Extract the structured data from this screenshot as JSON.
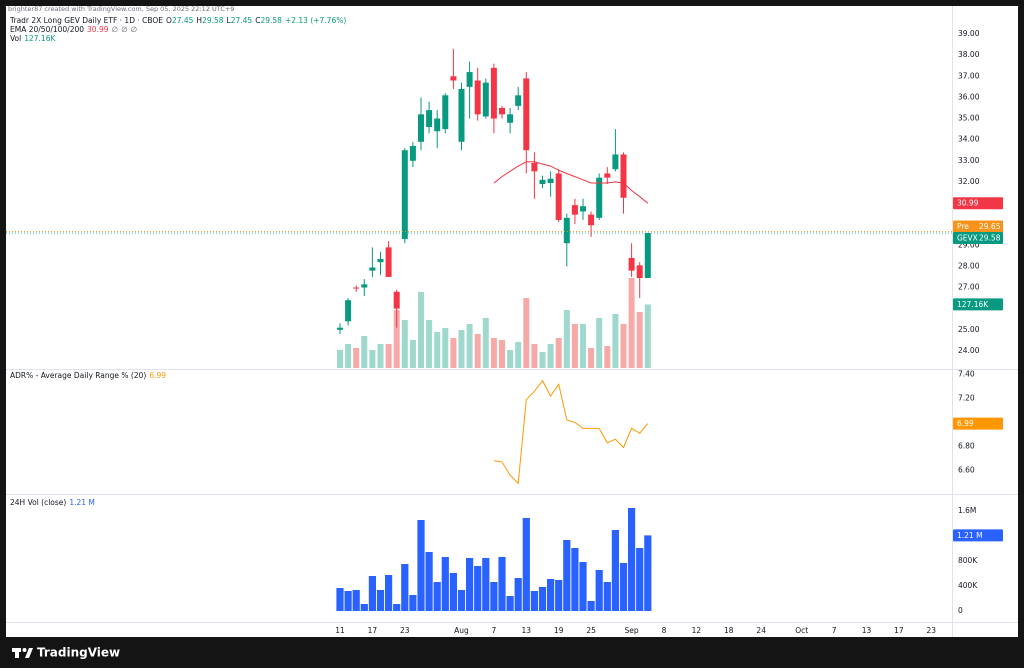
{
  "header": {
    "watermark": "brighter87 created with TradingView.com, Sep 05, 2025 22:12 UTC+9"
  },
  "footer": {
    "brand": "TradingView"
  },
  "chart_data": [
    {
      "type": "candlestick",
      "title": "Tradr 2X Long GEV Daily ETF · 1D · CBOE",
      "symbol": "GEVX",
      "x": [
        "2025-07-11",
        "2025-07-14",
        "2025-07-15",
        "2025-07-16",
        "2025-07-17",
        "2025-07-18",
        "2025-07-21",
        "2025-07-22",
        "2025-07-23",
        "2025-07-24",
        "2025-07-25",
        "2025-07-28",
        "2025-07-29",
        "2025-07-30",
        "2025-07-31",
        "2025-08-01",
        "2025-08-04",
        "2025-08-05",
        "2025-08-06",
        "2025-08-07",
        "2025-08-08",
        "2025-08-11",
        "2025-08-12",
        "2025-08-13",
        "2025-08-14",
        "2025-08-15",
        "2025-08-18",
        "2025-08-19",
        "2025-08-20",
        "2025-08-21",
        "2025-08-22",
        "2025-08-25",
        "2025-08-26",
        "2025-08-27",
        "2025-08-28",
        "2025-08-29",
        "2025-09-02",
        "2025-09-03",
        "2025-09-04"
      ],
      "open": [
        25.0,
        25.4,
        27.0,
        27.0,
        27.8,
        28.2,
        28.9,
        26.8,
        29.3,
        33.0,
        33.9,
        34.6,
        34.4,
        34.5,
        37.0,
        33.9,
        36.5,
        36.8,
        35.1,
        37.4,
        35.5,
        34.8,
        35.6,
        36.9,
        32.9,
        31.9,
        31.95,
        32.4,
        29.1,
        30.9,
        30.6,
        30.45,
        30.3,
        32.4,
        32.6,
        33.3,
        28.4,
        28.05,
        27.45
      ],
      "high": [
        25.3,
        26.5,
        27.1,
        27.4,
        28.9,
        28.7,
        29.2,
        26.9,
        33.6,
        33.9,
        36.0,
        35.8,
        35.4,
        36.2,
        38.3,
        36.7,
        37.7,
        37.4,
        36.9,
        37.6,
        35.6,
        35.5,
        36.5,
        37.2,
        33.4,
        32.3,
        32.5,
        32.6,
        30.5,
        31.2,
        31.2,
        30.6,
        32.4,
        32.7,
        34.5,
        33.4,
        29.1,
        28.2,
        29.58
      ],
      "low": [
        24.8,
        25.2,
        26.8,
        26.6,
        27.5,
        27.6,
        27.5,
        25.1,
        29.1,
        32.7,
        33.5,
        34.3,
        33.6,
        34.3,
        36.4,
        33.5,
        35.0,
        34.9,
        35.0,
        34.3,
        35.0,
        34.3,
        35.4,
        32.4,
        31.2,
        31.7,
        31.3,
        30.1,
        28.0,
        30.0,
        30.2,
        29.4,
        30.2,
        31.9,
        32.5,
        30.5,
        27.5,
        26.5,
        27.45
      ],
      "close": [
        25.1,
        26.4,
        26.95,
        27.15,
        27.95,
        28.35,
        27.5,
        26.0,
        33.5,
        33.7,
        35.2,
        35.4,
        35.0,
        36.1,
        36.8,
        36.4,
        37.2,
        35.2,
        36.7,
        35.0,
        35.2,
        35.2,
        36.1,
        33.5,
        32.5,
        32.1,
        32.15,
        30.2,
        30.3,
        30.45,
        30.85,
        29.95,
        32.2,
        32.2,
        33.3,
        31.25,
        27.8,
        27.45,
        29.58
      ],
      "up_color": "#089981",
      "down_color": "#f23645",
      "ohlc_keys": [
        "O",
        "H",
        "L",
        "C"
      ],
      "change": "+2.13 (+7.76%)",
      "ylim": [
        23.19,
        39.76
      ],
      "yticks": [
        {
          "value": 24,
          "label": "24.00"
        },
        {
          "value": 25,
          "label": "25.00"
        },
        {
          "value": 27,
          "label": "27.00"
        },
        {
          "value": 28,
          "label": "28.00"
        },
        {
          "value": 29,
          "label": "29.00"
        },
        {
          "value": 32,
          "label": "32.00"
        },
        {
          "value": 33,
          "label": "33.00"
        },
        {
          "value": 34,
          "label": "34.00"
        },
        {
          "value": 35,
          "label": "35.00"
        },
        {
          "value": 36,
          "label": "36.00"
        },
        {
          "value": 37,
          "label": "37.00"
        },
        {
          "value": 38,
          "label": "38.00"
        },
        {
          "value": 39,
          "label": "39.00"
        }
      ],
      "xticks": [
        {
          "value": "2025-07-11",
          "label": "11"
        },
        {
          "value": "2025-07-17",
          "label": "17"
        },
        {
          "value": "2025-07-23",
          "label": "23"
        },
        {
          "value": "2025-08-01",
          "label": "Aug"
        },
        {
          "value": "2025-08-07",
          "label": "7"
        },
        {
          "value": "2025-08-13",
          "label": "13"
        },
        {
          "value": "2025-08-19",
          "label": "19"
        },
        {
          "value": "2025-08-25",
          "label": "25"
        },
        {
          "value": "2025-09-02",
          "label": "Sep"
        },
        {
          "value": "2025-09-08",
          "label": "8"
        },
        {
          "value": "2025-09-12",
          "label": "12"
        },
        {
          "value": "2025-09-18",
          "label": "18"
        },
        {
          "value": "2025-09-24",
          "label": "24"
        },
        {
          "value": "2025-10-01",
          "label": "Oct"
        },
        {
          "value": "2025-10-07",
          "label": "7"
        },
        {
          "value": "2025-10-13",
          "label": "13"
        },
        {
          "value": "2025-10-17",
          "label": "17"
        },
        {
          "value": "2025-10-23",
          "label": "23"
        }
      ],
      "premarket": {
        "label": "Pre",
        "value": 29.65,
        "color": "#f7931a"
      },
      "series": [
        {
          "name": "EMA 20/50/100/200",
          "color": "#f23645",
          "na": [
            "∅",
            "∅",
            "∅"
          ],
          "values": [
            null,
            null,
            null,
            null,
            null,
            null,
            null,
            null,
            null,
            null,
            null,
            null,
            null,
            null,
            null,
            null,
            null,
            null,
            null,
            31.95,
            32.25,
            32.5,
            32.75,
            32.95,
            32.95,
            32.85,
            32.75,
            32.55,
            32.4,
            32.25,
            32.1,
            31.95,
            31.95,
            31.95,
            32.0,
            31.95,
            31.6,
            31.3,
            30.99
          ]
        },
        {
          "name": "Vol",
          "up_color": "#9fd9ce",
          "down_color": "#f7a9a8",
          "label_color": "#089981",
          "values": [
            36000,
            48000,
            40000,
            64000,
            36000,
            48000,
            48000,
            116000,
            96000,
            56000,
            152000,
            96000,
            72000,
            80000,
            60000,
            76000,
            88000,
            68000,
            100000,
            60000,
            56000,
            36000,
            52000,
            140000,
            48000,
            32000,
            48000,
            60000,
            116000,
            88000,
            88000,
            40000,
            100000,
            44000,
            108000,
            88000,
            180000,
            112000,
            127160
          ],
          "value_labels": {
            "38": "127.16K"
          }
        }
      ]
    },
    {
      "type": "line",
      "name": "ADR% - Average Daily Range % (20)",
      "color": "#ff9800",
      "values": [
        null,
        null,
        null,
        null,
        null,
        null,
        null,
        null,
        null,
        null,
        null,
        null,
        null,
        null,
        null,
        null,
        null,
        null,
        null,
        6.68,
        6.67,
        6.56,
        6.49,
        7.19,
        7.26,
        7.35,
        7.22,
        7.32,
        7.02,
        7.0,
        6.95,
        6.95,
        6.95,
        6.83,
        6.86,
        6.79,
        6.95,
        6.91,
        6.99
      ],
      "ylim": [
        6.41,
        7.43
      ],
      "yticks": [
        {
          "value": 6.6,
          "label": "6.60"
        },
        {
          "value": 6.8,
          "label": "6.80"
        },
        {
          "value": 7.2,
          "label": "7.20"
        },
        {
          "value": 7.4,
          "label": "7.40"
        }
      ]
    },
    {
      "type": "bar",
      "name": "24H Vol (close)",
      "color": "#2962ff",
      "values": [
        368000,
        320000,
        336000,
        112000,
        560000,
        336000,
        576000,
        112000,
        752000,
        256000,
        1456000,
        944000,
        464000,
        864000,
        608000,
        336000,
        848000,
        720000,
        848000,
        464000,
        864000,
        240000,
        528000,
        1488000,
        320000,
        384000,
        512000,
        496000,
        1136000,
        1008000,
        784000,
        160000,
        656000,
        464000,
        1296000,
        768000,
        1648000,
        1008000,
        1210000
      ],
      "value_labels": {
        "38": "1.21 M"
      },
      "ylim": [
        -176000,
        1856000
      ],
      "yticks": [
        0,
        {
          "value": 400000,
          "label": "400K"
        },
        {
          "value": 800000,
          "label": "800K"
        },
        {
          "value": 1600000,
          "label": "1.6M"
        }
      ]
    }
  ]
}
